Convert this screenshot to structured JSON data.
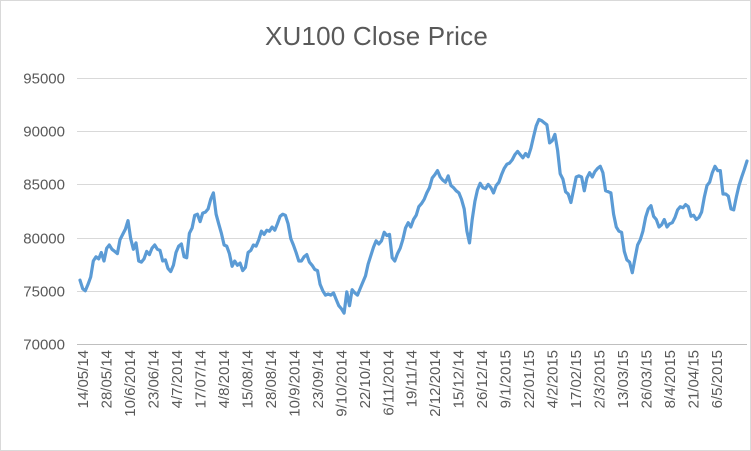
{
  "chart_data": {
    "type": "line",
    "title": "XU100 Close Price",
    "xlabel": "",
    "ylabel": "",
    "ylim": [
      70000,
      95000
    ],
    "yticks": [
      70000,
      75000,
      80000,
      85000,
      90000,
      95000
    ],
    "grid": true,
    "legend": "none",
    "line_color": "#5B9BD5",
    "x_tick_labels": [
      "14/05/14",
      "28/05/14",
      "10/6/2014",
      "23/06/14",
      "4/7/2014",
      "17/07/14",
      "4/8/2014",
      "15/08/14",
      "28/08/14",
      "10/9/2014",
      "23/09/14",
      "9/10/2014",
      "22/10/14",
      "6/11/2014",
      "19/11/14",
      "2/12/2014",
      "15/12/14",
      "26/12/14",
      "9/1/2015",
      "22/01/15",
      "4/2/2015",
      "17/02/15",
      "2/3/2015",
      "13/03/15",
      "26/03/15",
      "8/4/2015",
      "21/04/15",
      "6/5/2015"
    ],
    "series": [
      {
        "name": "",
        "values": [
          76000,
          75200,
          75000,
          75600,
          76300,
          77800,
          78200,
          78000,
          78600,
          77800,
          79000,
          79300,
          78900,
          78700,
          78500,
          79800,
          80300,
          80800,
          81600,
          79900,
          78900,
          79500,
          77800,
          77700,
          78000,
          78700,
          78400,
          79000,
          79300,
          78900,
          78800,
          77800,
          77900,
          77100,
          76800,
          77400,
          78600,
          79200,
          79400,
          78200,
          78100,
          80400,
          80900,
          82100,
          82200,
          81500,
          82300,
          82400,
          82700,
          83600,
          84200,
          82200,
          81300,
          80400,
          79300,
          79200,
          78500,
          77300,
          77800,
          77400,
          77600,
          76900,
          77200,
          78600,
          78800,
          79300,
          79200,
          79800,
          80600,
          80300,
          80700,
          80600,
          81000,
          80700,
          81300,
          82000,
          82200,
          82100,
          81300,
          79900,
          79300,
          78600,
          77800,
          77800,
          78200,
          78400,
          77700,
          77400,
          77000,
          76900,
          75600,
          75000,
          74600,
          74700,
          74600,
          74800,
          74200,
          73600,
          73300,
          72900,
          74900,
          73600,
          75100,
          74800,
          74600,
          75200,
          75800,
          76400,
          77500,
          78300,
          79100,
          79700,
          79400,
          79700,
          80500,
          80200,
          80300,
          78100,
          77800,
          78500,
          79000,
          79800,
          80900,
          81400,
          81000,
          81700,
          82100,
          82900,
          83200,
          83600,
          84200,
          84700,
          85600,
          85900,
          86300,
          85700,
          85400,
          85200,
          85800,
          84900,
          84700,
          84400,
          84200,
          83600,
          82700,
          80600,
          79500,
          81700,
          83400,
          84500,
          85100,
          84700,
          84600,
          85000,
          84700,
          84200,
          84900,
          85200,
          85900,
          86500,
          86900,
          87000,
          87300,
          87800,
          88100,
          87800,
          87500,
          87900,
          87600,
          88400,
          89500,
          90500,
          91100,
          91000,
          90800,
          90600,
          88900,
          89100,
          89700,
          88200,
          86000,
          85500,
          84300,
          84100,
          83300,
          84500,
          85700,
          85800,
          85700,
          84400,
          85600,
          86100,
          85700,
          86200,
          86500,
          86700,
          86100,
          84400,
          84300,
          84200,
          82200,
          81000,
          80600,
          80500,
          78700,
          77900,
          77700,
          76700,
          78000,
          79300,
          79800,
          80600,
          81900,
          82700,
          83000,
          82000,
          81700,
          81000,
          81200,
          81700,
          81000,
          81300,
          81400,
          81900,
          82600,
          82900,
          82800,
          83100,
          82900,
          82000,
          82100,
          81700,
          81900,
          82400,
          83800,
          84900,
          85200,
          86100,
          86700,
          86300,
          86300,
          84100,
          84100,
          83900,
          82700,
          82600,
          83800,
          84900,
          85700,
          86400,
          87200
        ]
      }
    ]
  }
}
